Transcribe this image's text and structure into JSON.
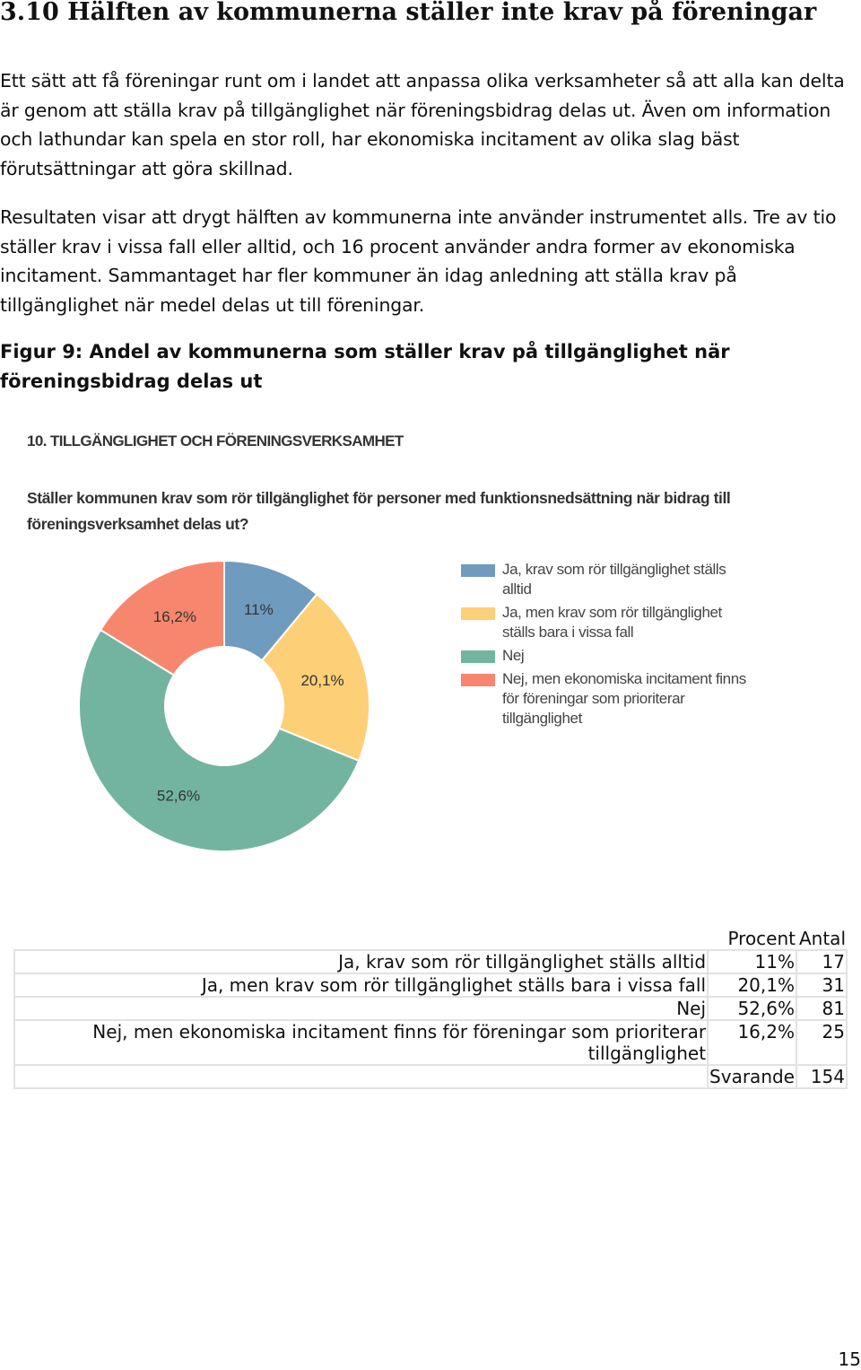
{
  "heading": "3.10 Hälften av kommunerna ställer inte krav på föreningar",
  "paragraphs": [
    "Ett sätt att få föreningar runt om i landet att anpassa olika verksamheter så att alla kan delta är genom att ställa krav på tillgänglighet när föreningsbidrag delas ut. Även om information och lathundar kan spela en stor roll, har ekonomiska incitament av olika slag bäst förutsättningar att göra skillnad.",
    "Resultaten visar att drygt hälften av kommunerna inte använder instrumentet alls.  Tre av tio ställer krav i vissa fall eller alltid, och 16 procent använder andra former av ekonomiska incitament. Sammantaget har fler kommuner än idag anledning att ställa krav på tillgänglighet när medel delas ut till föreningar."
  ],
  "figure_caption": "Figur 9: Andel av kommunerna som ställer krav på tillgänglighet när föreningsbidrag delas ut",
  "chart_data": {
    "type": "donut",
    "title": "10. TILLGÄNGLIGHET OCH FÖRENINGSVERKSAMHET",
    "subtitle": "Ställer kommunen krav som rör tillgänglighet för personer med funktionsnedsättning när bidrag till föreningsverksamhet delas ut?",
    "categories": [
      "Ja, krav som rör tillgänglighet ställs alltid",
      "Ja, men krav som rör tillgänglighet ställs bara i vissa fall",
      "Nej",
      "Nej, men ekonomiska incitament finns för föreningar som prioriterar tillgänglighet"
    ],
    "values": [
      11,
      20.1,
      52.6,
      16.2
    ],
    "value_labels": [
      "11%",
      "20,1%",
      "52,6%",
      "16,2%"
    ],
    "colors": [
      "#6f9bbf",
      "#fdcf76",
      "#73b4a0",
      "#f6876e"
    ]
  },
  "table": {
    "columns": [
      "Procent",
      "Antal"
    ],
    "rows": [
      [
        "Ja, krav som rör tillgänglighet ställs alltid",
        "11%",
        "17"
      ],
      [
        "Ja, men krav som rör tillgänglighet ställs bara i vissa fall",
        "20,1%",
        "31"
      ],
      [
        "Nej",
        "52,6%",
        "81"
      ],
      [
        "Nej, men ekonomiska incitament finns för föreningar som prioriterar tillgänglighet",
        "16,2%",
        "25"
      ]
    ],
    "total": [
      "Svarande",
      "154"
    ]
  },
  "page_number": "15"
}
